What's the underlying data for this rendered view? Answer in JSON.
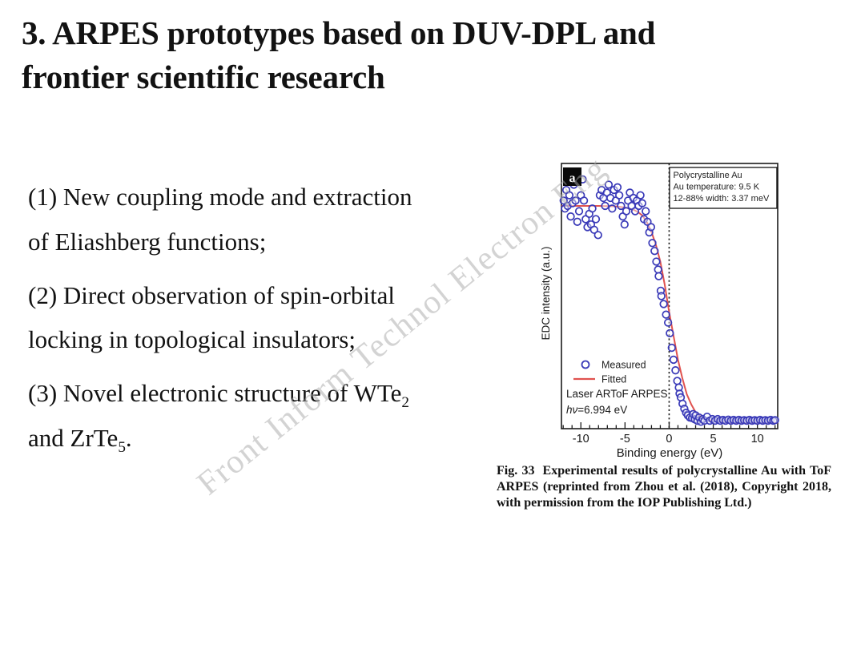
{
  "slide": {
    "title_segments": [
      {
        "t": "3. ARPES prototypes based on DUV-DPL and"
      },
      {
        "br": true
      },
      {
        "t": "frontier scientific research"
      }
    ],
    "watermark": "Front Inform Technol Electron Eng",
    "bullets": [
      {
        "segments": [
          {
            "t": "(1) New coupling mode and extraction"
          },
          {
            "br": true
          },
          {
            "t": "of Eliashberg functions;"
          }
        ]
      },
      {
        "segments": [
          {
            "t": "(2) Direct observation of spin-orbital"
          },
          {
            "br": true
          },
          {
            "t": "locking in topological insulators;"
          }
        ]
      },
      {
        "segments": [
          {
            "t": "(3) Novel electronic structure of WTe"
          },
          {
            "sub": "2"
          },
          {
            "br": true
          },
          {
            "t": "and ZrTe"
          },
          {
            "sub": "5"
          },
          {
            "t": "."
          }
        ]
      }
    ],
    "caption": {
      "label": "Fig. 33",
      "text": "Experimental results of polycrystalline Au with ToF ARPES (reprinted from Zhou et al. (2018), Copyright 2018, with permission from the IOP Publishing Ltd.)"
    }
  },
  "chart_data": {
    "type": "scatter",
    "panel_label": "a",
    "xlabel": "Binding energy (eV)",
    "ylabel": "EDC intensity (a.u.)",
    "xlim": [
      -12.2,
      12.3
    ],
    "ylim": [
      0,
      1
    ],
    "x_ticks": [
      -10,
      -5,
      0,
      5,
      10
    ],
    "x_minor_step": 1,
    "grid": false,
    "fermi_level_line_x": 0,
    "legend_position": "lower-left inside",
    "annotation_box": [
      "Polycrystalline Au",
      "Au temperature: 9.5 K",
      "12-88% width: 3.37 meV"
    ],
    "legend": {
      "measured": "Measured",
      "fitted": "Fitted",
      "instrument": "Laser ARToF ARPES",
      "hv_italic": "hν",
      "hv_rest": "=6.994 eV"
    },
    "colors": {
      "measured": "#3a3ab8",
      "fitted": "#e0524f",
      "axis": "#1c1c1c"
    },
    "series": [
      {
        "name": "Measured",
        "type": "scatter",
        "points": [
          [
            -11.95,
            0.86
          ],
          [
            -11.8,
            0.83
          ],
          [
            -11.65,
            0.9
          ],
          [
            -11.5,
            0.84
          ],
          [
            -11.3,
            0.88
          ],
          [
            -11.15,
            0.8
          ],
          [
            -10.95,
            0.85
          ],
          [
            -10.8,
            0.92
          ],
          [
            -10.6,
            0.86
          ],
          [
            -10.4,
            0.78
          ],
          [
            -10.2,
            0.82
          ],
          [
            -10.0,
            0.88
          ],
          [
            -9.8,
            0.94
          ],
          [
            -9.65,
            0.86
          ],
          [
            -9.45,
            0.79
          ],
          [
            -9.25,
            0.76
          ],
          [
            -9.05,
            0.81
          ],
          [
            -8.85,
            0.77
          ],
          [
            -8.7,
            0.83
          ],
          [
            -8.5,
            0.75
          ],
          [
            -8.3,
            0.79
          ],
          [
            -8.05,
            0.73
          ],
          [
            -7.85,
            0.88
          ],
          [
            -7.65,
            0.9
          ],
          [
            -7.45,
            0.87
          ],
          [
            -7.25,
            0.84
          ],
          [
            -7.05,
            0.89
          ],
          [
            -6.85,
            0.92
          ],
          [
            -6.65,
            0.87
          ],
          [
            -6.45,
            0.83
          ],
          [
            -6.25,
            0.9
          ],
          [
            -6.05,
            0.86
          ],
          [
            -5.85,
            0.91
          ],
          [
            -5.65,
            0.88
          ],
          [
            -5.45,
            0.84
          ],
          [
            -5.25,
            0.8
          ],
          [
            -5.05,
            0.77
          ],
          [
            -4.85,
            0.82
          ],
          [
            -4.65,
            0.86
          ],
          [
            -4.45,
            0.89
          ],
          [
            -4.25,
            0.84
          ],
          [
            -4.05,
            0.87
          ],
          [
            -3.85,
            0.82
          ],
          [
            -3.65,
            0.86
          ],
          [
            -3.45,
            0.84
          ],
          [
            -3.25,
            0.88
          ],
          [
            -3.05,
            0.85
          ],
          [
            -2.85,
            0.79
          ],
          [
            -2.65,
            0.82
          ],
          [
            -2.45,
            0.78
          ],
          [
            -2.25,
            0.74
          ],
          [
            -2.05,
            0.76
          ],
          [
            -1.9,
            0.7
          ],
          [
            -1.65,
            0.67
          ],
          [
            -1.45,
            0.63
          ],
          [
            -1.25,
            0.6
          ],
          [
            -1.18,
            0.575
          ],
          [
            -0.95,
            0.52
          ],
          [
            -0.88,
            0.5
          ],
          [
            -0.62,
            0.47
          ],
          [
            -0.35,
            0.43
          ],
          [
            -0.12,
            0.4
          ],
          [
            0.08,
            0.36
          ],
          [
            0.3,
            0.305
          ],
          [
            0.5,
            0.26
          ],
          [
            0.72,
            0.22
          ],
          [
            0.92,
            0.18
          ],
          [
            1.1,
            0.155
          ],
          [
            1.18,
            0.132
          ],
          [
            1.32,
            0.118
          ],
          [
            1.52,
            0.094
          ],
          [
            1.72,
            0.075
          ],
          [
            1.92,
            0.06
          ],
          [
            2.12,
            0.05
          ],
          [
            2.35,
            0.042
          ],
          [
            2.6,
            0.04
          ],
          [
            2.72,
            0.055
          ],
          [
            2.9,
            0.035
          ],
          [
            3.0,
            0.05
          ],
          [
            3.2,
            0.03
          ],
          [
            3.4,
            0.042
          ],
          [
            3.6,
            0.026
          ],
          [
            3.8,
            0.036
          ],
          [
            4.0,
            0.03
          ],
          [
            4.3,
            0.045
          ],
          [
            4.6,
            0.03
          ],
          [
            4.9,
            0.036
          ],
          [
            5.2,
            0.03
          ],
          [
            5.5,
            0.036
          ],
          [
            5.8,
            0.03
          ],
          [
            6.1,
            0.033
          ],
          [
            6.4,
            0.03
          ],
          [
            6.7,
            0.034
          ],
          [
            7.0,
            0.03
          ],
          [
            7.3,
            0.033
          ],
          [
            7.6,
            0.03
          ],
          [
            7.9,
            0.033
          ],
          [
            8.2,
            0.03
          ],
          [
            8.5,
            0.032
          ],
          [
            8.8,
            0.03
          ],
          [
            9.1,
            0.033
          ],
          [
            9.4,
            0.03
          ],
          [
            9.7,
            0.032
          ],
          [
            10.0,
            0.03
          ],
          [
            10.3,
            0.033
          ],
          [
            10.6,
            0.03
          ],
          [
            10.9,
            0.032
          ],
          [
            11.2,
            0.03
          ],
          [
            11.5,
            0.033
          ],
          [
            11.8,
            0.03
          ],
          [
            12.0,
            0.032
          ]
        ]
      },
      {
        "name": "Fitted",
        "type": "line",
        "points": [
          [
            -12.2,
            0.84
          ],
          [
            -10,
            0.84
          ],
          [
            -8,
            0.84
          ],
          [
            -6,
            0.838
          ],
          [
            -5,
            0.834
          ],
          [
            -4,
            0.825
          ],
          [
            -3.5,
            0.816
          ],
          [
            -3,
            0.803
          ],
          [
            -2.5,
            0.777
          ],
          [
            -2,
            0.742
          ],
          [
            -1.5,
            0.693
          ],
          [
            -1,
            0.63
          ],
          [
            -0.5,
            0.543
          ],
          [
            0,
            0.44
          ],
          [
            0.5,
            0.35
          ],
          [
            1,
            0.26
          ],
          [
            1.5,
            0.19
          ],
          [
            2,
            0.13
          ],
          [
            2.5,
            0.092
          ],
          [
            3,
            0.062
          ],
          [
            3.5,
            0.048
          ],
          [
            4,
            0.038
          ],
          [
            5,
            0.028
          ],
          [
            6,
            0.024
          ],
          [
            8,
            0.022
          ],
          [
            10,
            0.022
          ],
          [
            12.3,
            0.022
          ]
        ]
      }
    ]
  }
}
